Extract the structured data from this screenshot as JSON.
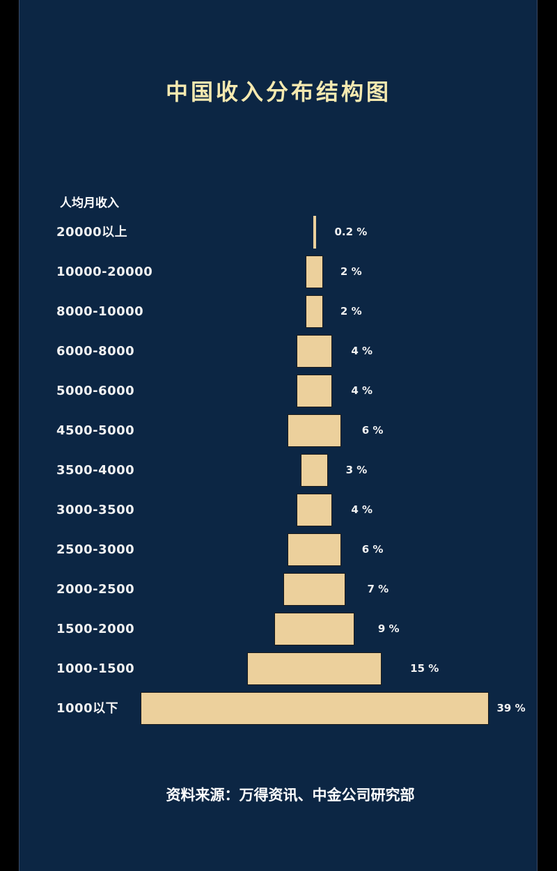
{
  "title": "中国收入分布结构图",
  "axis_title": "人均月收入",
  "source": "资料来源：万得资讯、中金公司研究部",
  "colors": {
    "background": "#0c2644",
    "bar": "#ecd09c",
    "title": "#f5e9b0",
    "text": "#f2f2f2"
  },
  "rows": [
    {
      "label": "20000以上",
      "pct_label": "0.2 %"
    },
    {
      "label": "10000-20000",
      "pct_label": "2 %"
    },
    {
      "label": "8000-10000",
      "pct_label": "2 %"
    },
    {
      "label": "6000-8000",
      "pct_label": "4 %"
    },
    {
      "label": "5000-6000",
      "pct_label": "4 %"
    },
    {
      "label": "4500-5000",
      "pct_label": "6 %"
    },
    {
      "label": "3500-4000",
      "pct_label": "3 %"
    },
    {
      "label": "3000-3500",
      "pct_label": "4 %"
    },
    {
      "label": "2500-3000",
      "pct_label": "6 %"
    },
    {
      "label": "2000-2500",
      "pct_label": "7 %"
    },
    {
      "label": "1500-2000",
      "pct_label": "9 %"
    },
    {
      "label": "1000-1500",
      "pct_label": "15 %"
    },
    {
      "label": "1000以下",
      "pct_label": "39 %"
    }
  ],
  "chart_data": {
    "type": "bar",
    "orientation": "horizontal-centered (population pyramid style)",
    "title": "中国收入分布结构图",
    "ylabel": "人均月收入",
    "xlabel": "",
    "categories": [
      "20000以上",
      "10000-20000",
      "8000-10000",
      "6000-8000",
      "5000-6000",
      "4500-5000",
      "3500-4000",
      "3000-3500",
      "2500-3000",
      "2000-2500",
      "1500-2000",
      "1000-1500",
      "1000以下"
    ],
    "values": [
      0.2,
      2,
      2,
      4,
      4,
      6,
      3,
      4,
      6,
      7,
      9,
      15,
      39
    ],
    "unit": "%",
    "grid": false,
    "legend": null,
    "annotations": [
      "资料来源：万得资讯、中金公司研究部"
    ]
  }
}
